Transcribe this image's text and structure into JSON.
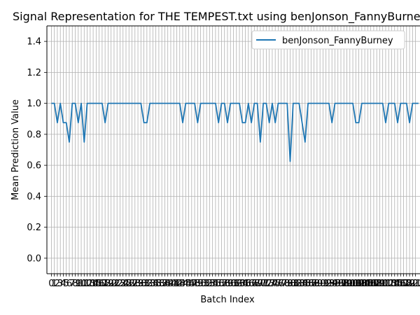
{
  "chart_data": {
    "type": "line",
    "title": "Signal Representation for THE TEMPEST.txt using benJonson_FannyBurney",
    "xlabel": "Batch Index",
    "ylabel": "Mean Prediction Value",
    "ylim": [
      -0.1,
      1.5
    ],
    "xlim": [
      -1.5,
      123.5
    ],
    "yticks": [
      "0.0",
      "0.2",
      "0.4",
      "0.6",
      "0.8",
      "1.0",
      "1.2",
      "1.4"
    ],
    "xtick_labels": [
      "0",
      "1",
      "2",
      "3",
      "4",
      "5",
      "6",
      "7",
      "8",
      "9",
      "10",
      "11",
      "12",
      "13",
      "14",
      "15",
      "16",
      "17",
      "18",
      "19",
      "20",
      "21",
      "22",
      "23",
      "24",
      "25",
      "26",
      "27",
      "28",
      "29",
      "30",
      "31",
      "32",
      "33",
      "34",
      "35",
      "36",
      "37",
      "38",
      "39",
      "40",
      "41",
      "42",
      "43",
      "44",
      "45",
      "46",
      "47",
      "48",
      "49",
      "50",
      "51",
      "52",
      "53",
      "54",
      "55",
      "56",
      "57",
      "58",
      "59",
      "60",
      "61",
      "62",
      "63",
      "64",
      "65",
      "66",
      "67",
      "68",
      "69",
      "70",
      "71",
      "72",
      "73",
      "74",
      "75",
      "76",
      "77",
      "78",
      "79",
      "80",
      "81",
      "82",
      "83",
      "84",
      "85",
      "86",
      "87",
      "88",
      "89",
      "90",
      "91",
      "92",
      "93",
      "94",
      "95",
      "96",
      "97",
      "98",
      "99",
      "100",
      "101",
      "102",
      "103",
      "104",
      "105",
      "106",
      "107",
      "108",
      "109",
      "110",
      "111",
      "112",
      "113",
      "114",
      "115",
      "116",
      "117",
      "118",
      "119",
      "120",
      "121",
      "122"
    ],
    "grid": true,
    "legend_position": "top-right",
    "series": [
      {
        "name": "benJonson_FannyBurney",
        "color": "#1f77b4",
        "x": [
          0,
          1,
          2,
          3,
          4,
          5,
          6,
          7,
          8,
          9,
          10,
          11,
          12,
          13,
          14,
          15,
          16,
          17,
          18,
          19,
          20,
          21,
          22,
          23,
          24,
          25,
          26,
          27,
          28,
          29,
          30,
          31,
          32,
          33,
          34,
          35,
          36,
          37,
          38,
          39,
          40,
          41,
          42,
          43,
          44,
          45,
          46,
          47,
          48,
          49,
          50,
          51,
          52,
          53,
          54,
          55,
          56,
          57,
          58,
          59,
          60,
          61,
          62,
          63,
          64,
          65,
          66,
          67,
          68,
          69,
          70,
          71,
          72,
          73,
          74,
          75,
          76,
          77,
          78,
          79,
          80,
          81,
          82,
          83,
          84,
          85,
          86,
          87,
          88,
          89,
          90,
          91,
          92,
          93,
          94,
          95,
          96,
          97,
          98,
          99,
          100,
          101,
          102,
          103,
          104,
          105,
          106,
          107,
          108,
          109,
          110,
          111,
          112,
          113,
          114,
          115,
          116,
          117,
          118,
          119,
          120,
          121,
          122,
          123
        ],
        "values": [
          1.0,
          1.0,
          0.875,
          1.0,
          0.875,
          0.875,
          0.75,
          1.0,
          1.0,
          0.875,
          1.0,
          0.75,
          1.0,
          1.0,
          1.0,
          1.0,
          1.0,
          1.0,
          0.875,
          1.0,
          1.0,
          1.0,
          1.0,
          1.0,
          1.0,
          1.0,
          1.0,
          1.0,
          1.0,
          1.0,
          1.0,
          0.875,
          0.875,
          1.0,
          1.0,
          1.0,
          1.0,
          1.0,
          1.0,
          1.0,
          1.0,
          1.0,
          1.0,
          1.0,
          0.875,
          1.0,
          1.0,
          1.0,
          1.0,
          0.875,
          1.0,
          1.0,
          1.0,
          1.0,
          1.0,
          1.0,
          0.875,
          1.0,
          1.0,
          0.875,
          1.0,
          1.0,
          1.0,
          1.0,
          0.875,
          0.875,
          1.0,
          0.875,
          1.0,
          1.0,
          0.75,
          1.0,
          1.0,
          0.875,
          1.0,
          0.875,
          1.0,
          1.0,
          1.0,
          1.0,
          0.625,
          1.0,
          1.0,
          1.0,
          0.875,
          0.75,
          1.0,
          1.0,
          1.0,
          1.0,
          1.0,
          1.0,
          1.0,
          1.0,
          0.875,
          1.0,
          1.0,
          1.0,
          1.0,
          1.0,
          1.0,
          1.0,
          0.875,
          0.875,
          1.0,
          1.0,
          1.0,
          1.0,
          1.0,
          1.0,
          1.0,
          1.0,
          0.875,
          1.0,
          1.0,
          1.0,
          0.875,
          1.0,
          1.0,
          1.0,
          0.875,
          1.0,
          1.0,
          1.0
        ]
      }
    ]
  }
}
